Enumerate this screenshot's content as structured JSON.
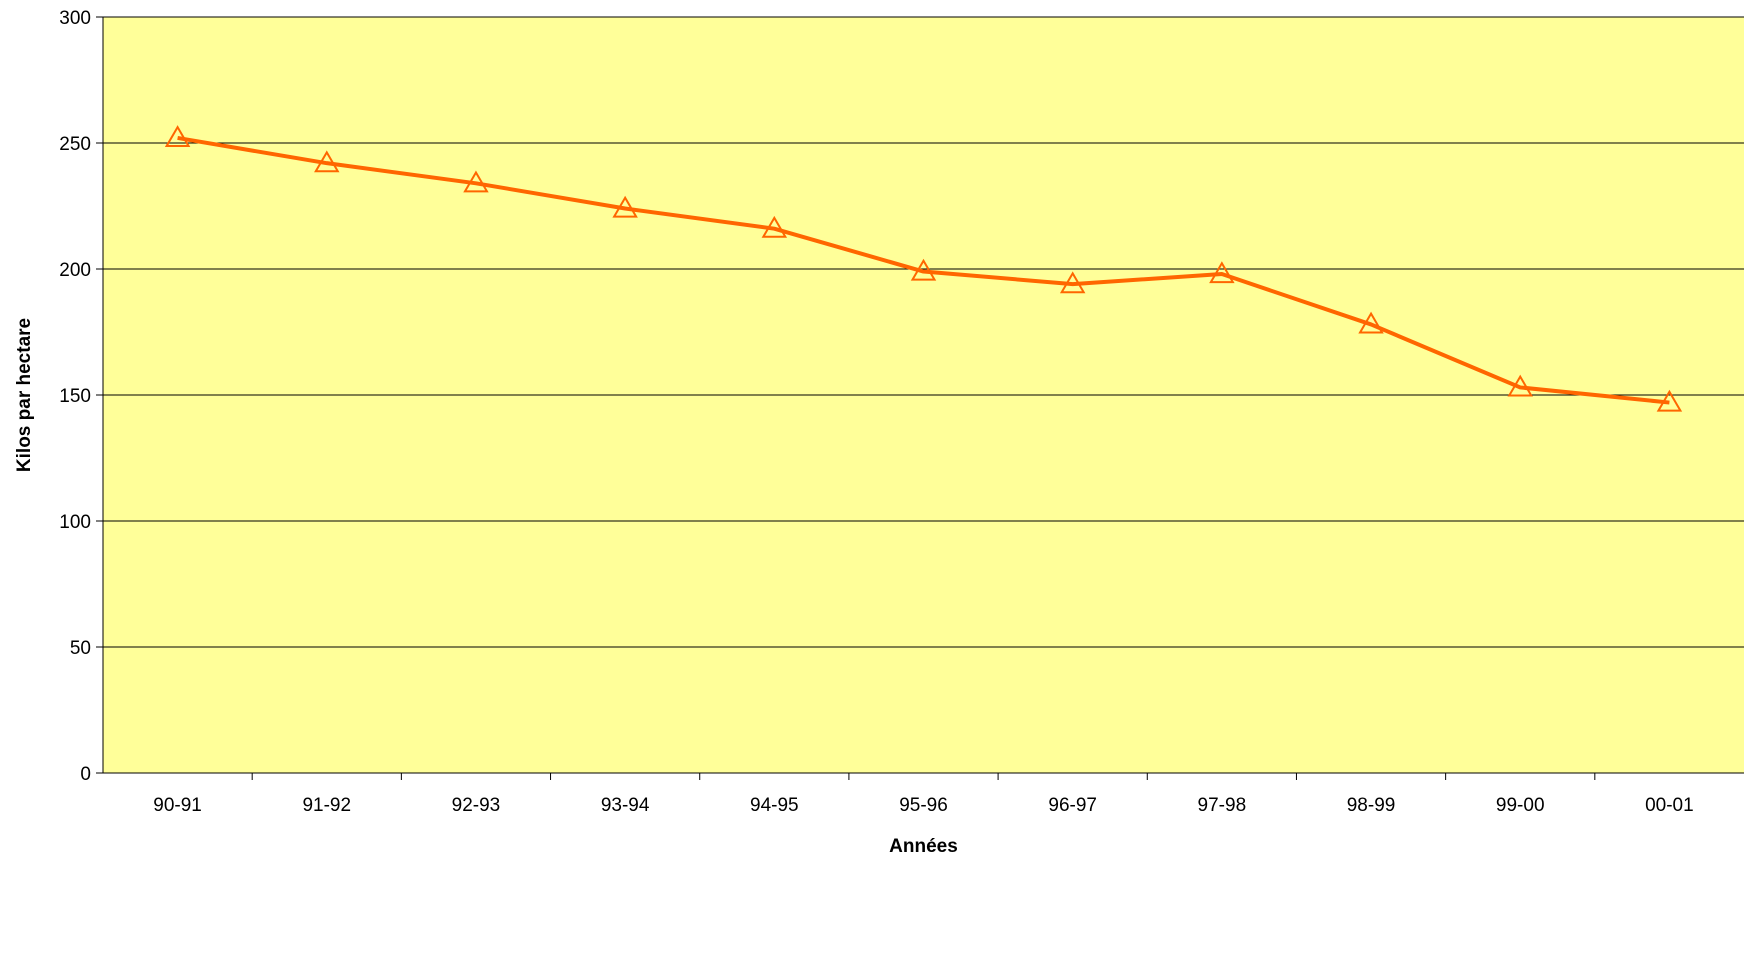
{
  "chart_data": {
    "type": "line",
    "title": "",
    "xlabel": "Années",
    "ylabel": "Kilos par hectare",
    "categories": [
      "90-91",
      "91-92",
      "92-93",
      "93-94",
      "94-95",
      "95-96",
      "96-97",
      "97-98",
      "98-99",
      "99-00",
      "00-01"
    ],
    "series": [
      {
        "values": [
          252,
          242,
          234,
          224,
          216,
          199,
          194,
          198,
          178,
          153,
          147
        ],
        "color": "#FF6600",
        "marker": "triangle-open"
      }
    ],
    "ylim": [
      0,
      300
    ],
    "yticks": [
      0,
      50,
      100,
      150,
      200,
      250,
      300
    ],
    "grid": "horizontal",
    "legend": "none",
    "plot_background": "#FFFF99"
  }
}
